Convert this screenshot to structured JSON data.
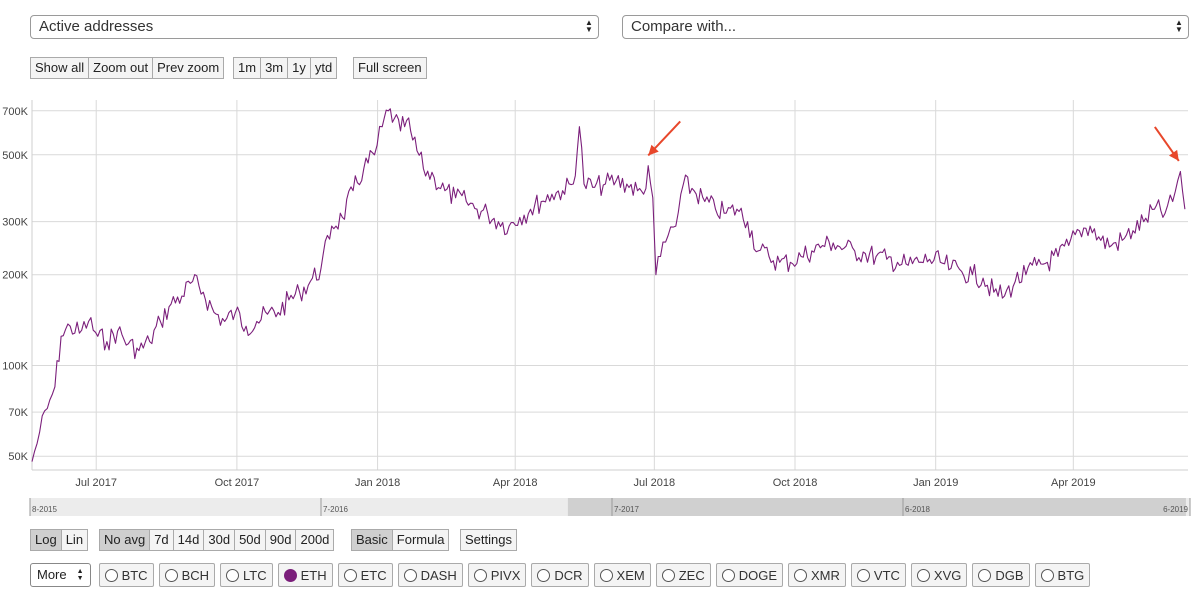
{
  "selectors": {
    "metric": "Active addresses",
    "compare": "Compare with..."
  },
  "zoom_buttons": [
    "Show all",
    "Zoom out",
    "Prev zoom"
  ],
  "range_buttons": [
    "1m",
    "3m",
    "1y",
    "ytd"
  ],
  "fullscreen_label": "Full screen",
  "scale_buttons": [
    {
      "label": "Log",
      "active": true
    },
    {
      "label": "Lin",
      "active": false
    }
  ],
  "avg_buttons": [
    {
      "label": "No avg",
      "active": true
    },
    {
      "label": "7d",
      "active": false
    },
    {
      "label": "14d",
      "active": false
    },
    {
      "label": "30d",
      "active": false
    },
    {
      "label": "50d",
      "active": false
    },
    {
      "label": "90d",
      "active": false
    },
    {
      "label": "200d",
      "active": false
    }
  ],
  "mode_buttons": [
    {
      "label": "Basic",
      "active": true
    },
    {
      "label": "Formula",
      "active": false
    }
  ],
  "settings_label": "Settings",
  "more_label": "More",
  "coins": [
    {
      "label": "BTC",
      "active": false
    },
    {
      "label": "BCH",
      "active": false
    },
    {
      "label": "LTC",
      "active": false
    },
    {
      "label": "ETH",
      "active": true
    },
    {
      "label": "ETC",
      "active": false
    },
    {
      "label": "DASH",
      "active": false
    },
    {
      "label": "PIVX",
      "active": false
    },
    {
      "label": "DCR",
      "active": false
    },
    {
      "label": "XEM",
      "active": false
    },
    {
      "label": "ZEC",
      "active": false
    },
    {
      "label": "DOGE",
      "active": false
    },
    {
      "label": "XMR",
      "active": false
    },
    {
      "label": "VTC",
      "active": false
    },
    {
      "label": "XVG",
      "active": false
    },
    {
      "label": "DGB",
      "active": false
    },
    {
      "label": "BTG",
      "active": false
    }
  ],
  "colors": {
    "series": "#7b1f7b",
    "arrow": "#e8472b",
    "grid": "#d9d9d9",
    "navigator_selected": "#d0d0d0",
    "navigator_unselected": "#ececec"
  },
  "chart_data": {
    "type": "line",
    "scale": "log",
    "grid": true,
    "x_range": [
      "2017-05-20",
      "2019-06-15"
    ],
    "y_range": [
      45000,
      760000
    ],
    "y_ticks": [
      {
        "value": 50000,
        "label": "50K"
      },
      {
        "value": 70000,
        "label": "70K"
      },
      {
        "value": 100000,
        "label": "100K"
      },
      {
        "value": 200000,
        "label": "200K"
      },
      {
        "value": 300000,
        "label": "300K"
      },
      {
        "value": 500000,
        "label": "500K"
      },
      {
        "value": 700000,
        "label": "700K"
      }
    ],
    "x_ticks": [
      {
        "date": "2017-07-01",
        "label": "Jul 2017"
      },
      {
        "date": "2017-10-01",
        "label": "Oct 2017"
      },
      {
        "date": "2018-01-01",
        "label": "Jan 2018"
      },
      {
        "date": "2018-04-01",
        "label": "Apr 2018"
      },
      {
        "date": "2018-07-01",
        "label": "Jul 2018"
      },
      {
        "date": "2018-10-01",
        "label": "Oct 2018"
      },
      {
        "date": "2019-01-01",
        "label": "Jan 2019"
      },
      {
        "date": "2019-04-01",
        "label": "Apr 2019"
      }
    ],
    "series": [
      {
        "points": [
          [
            "2017-05-20",
            48000
          ],
          [
            "2017-05-25",
            60000
          ],
          [
            "2017-05-30",
            72000
          ],
          [
            "2017-06-04",
            85000
          ],
          [
            "2017-06-08",
            125000
          ],
          [
            "2017-06-14",
            135000
          ],
          [
            "2017-06-20",
            128000
          ],
          [
            "2017-06-26",
            140000
          ],
          [
            "2017-07-02",
            125000
          ],
          [
            "2017-07-08",
            120000
          ],
          [
            "2017-07-15",
            130000
          ],
          [
            "2017-07-22",
            118000
          ],
          [
            "2017-07-29",
            112000
          ],
          [
            "2017-08-05",
            120000
          ],
          [
            "2017-08-12",
            140000
          ],
          [
            "2017-08-19",
            160000
          ],
          [
            "2017-08-26",
            170000
          ],
          [
            "2017-09-02",
            190000
          ],
          [
            "2017-09-09",
            175000
          ],
          [
            "2017-09-16",
            150000
          ],
          [
            "2017-09-23",
            140000
          ],
          [
            "2017-09-30",
            150000
          ],
          [
            "2017-10-07",
            135000
          ],
          [
            "2017-10-14",
            140000
          ],
          [
            "2017-10-21",
            148000
          ],
          [
            "2017-10-28",
            150000
          ],
          [
            "2017-11-04",
            165000
          ],
          [
            "2017-11-11",
            175000
          ],
          [
            "2017-11-18",
            190000
          ],
          [
            "2017-11-25",
            210000
          ],
          [
            "2017-12-02",
            290000
          ],
          [
            "2017-12-09",
            310000
          ],
          [
            "2017-12-16",
            380000
          ],
          [
            "2017-12-23",
            450000
          ],
          [
            "2017-12-30",
            500000
          ],
          [
            "2018-01-04",
            620000
          ],
          [
            "2018-01-08",
            700000
          ],
          [
            "2018-01-12",
            660000
          ],
          [
            "2018-01-16",
            600000
          ],
          [
            "2018-01-20",
            650000
          ],
          [
            "2018-01-24",
            560000
          ],
          [
            "2018-01-31",
            450000
          ],
          [
            "2018-02-07",
            420000
          ],
          [
            "2018-02-14",
            380000
          ],
          [
            "2018-02-21",
            360000
          ],
          [
            "2018-02-28",
            350000
          ],
          [
            "2018-03-07",
            330000
          ],
          [
            "2018-03-14",
            320000
          ],
          [
            "2018-03-21",
            300000
          ],
          [
            "2018-03-28",
            290000
          ],
          [
            "2018-04-04",
            310000
          ],
          [
            "2018-04-11",
            330000
          ],
          [
            "2018-04-18",
            350000
          ],
          [
            "2018-04-25",
            370000
          ],
          [
            "2018-05-02",
            380000
          ],
          [
            "2018-05-09",
            400000
          ],
          [
            "2018-05-13",
            620000
          ],
          [
            "2018-05-16",
            400000
          ],
          [
            "2018-05-23",
            390000
          ],
          [
            "2018-05-30",
            400000
          ],
          [
            "2018-06-06",
            410000
          ],
          [
            "2018-06-13",
            400000
          ],
          [
            "2018-06-20",
            380000
          ],
          [
            "2018-06-24",
            370000
          ],
          [
            "2018-06-27",
            460000
          ],
          [
            "2018-06-30",
            360000
          ],
          [
            "2018-07-02",
            200000
          ],
          [
            "2018-07-05",
            230000
          ],
          [
            "2018-07-10",
            270000
          ],
          [
            "2018-07-15",
            290000
          ],
          [
            "2018-07-20",
            400000
          ],
          [
            "2018-07-27",
            380000
          ],
          [
            "2018-08-03",
            350000
          ],
          [
            "2018-08-10",
            330000
          ],
          [
            "2018-08-17",
            320000
          ],
          [
            "2018-08-24",
            330000
          ],
          [
            "2018-08-31",
            300000
          ],
          [
            "2018-09-07",
            240000
          ],
          [
            "2018-09-14",
            230000
          ],
          [
            "2018-09-21",
            220000
          ],
          [
            "2018-09-28",
            220000
          ],
          [
            "2018-10-05",
            230000
          ],
          [
            "2018-10-12",
            240000
          ],
          [
            "2018-10-19",
            250000
          ],
          [
            "2018-10-26",
            255000
          ],
          [
            "2018-11-02",
            245000
          ],
          [
            "2018-11-09",
            240000
          ],
          [
            "2018-11-16",
            235000
          ],
          [
            "2018-11-23",
            230000
          ],
          [
            "2018-11-30",
            225000
          ],
          [
            "2018-12-07",
            220000
          ],
          [
            "2018-12-14",
            215000
          ],
          [
            "2018-12-21",
            220000
          ],
          [
            "2018-12-28",
            225000
          ],
          [
            "2019-01-04",
            220000
          ],
          [
            "2019-01-11",
            210000
          ],
          [
            "2019-01-18",
            205000
          ],
          [
            "2019-01-25",
            200000
          ],
          [
            "2019-02-01",
            195000
          ],
          [
            "2019-02-08",
            175000
          ],
          [
            "2019-02-15",
            170000
          ],
          [
            "2019-02-22",
            190000
          ],
          [
            "2019-03-01",
            200000
          ],
          [
            "2019-03-08",
            215000
          ],
          [
            "2019-03-15",
            220000
          ],
          [
            "2019-03-22",
            230000
          ],
          [
            "2019-03-29",
            250000
          ],
          [
            "2019-04-05",
            280000
          ],
          [
            "2019-04-12",
            290000
          ],
          [
            "2019-04-19",
            260000
          ],
          [
            "2019-04-26",
            250000
          ],
          [
            "2019-05-03",
            260000
          ],
          [
            "2019-05-10",
            280000
          ],
          [
            "2019-05-17",
            300000
          ],
          [
            "2019-05-24",
            330000
          ],
          [
            "2019-05-31",
            320000
          ],
          [
            "2019-06-05",
            350000
          ],
          [
            "2019-06-10",
            440000
          ],
          [
            "2019-06-13",
            330000
          ]
        ]
      }
    ],
    "annotations": [
      {
        "type": "arrow",
        "date": "2018-06-27",
        "value": 490000
      },
      {
        "type": "arrow",
        "date": "2019-06-09",
        "value": 470000
      }
    ],
    "navigator": {
      "labels": [
        "8-2015",
        "7-2016",
        "7-2017",
        "6-2018",
        "6-2019"
      ],
      "selected_from": "2017-05-20",
      "selected_to": "2019-06-15"
    }
  }
}
